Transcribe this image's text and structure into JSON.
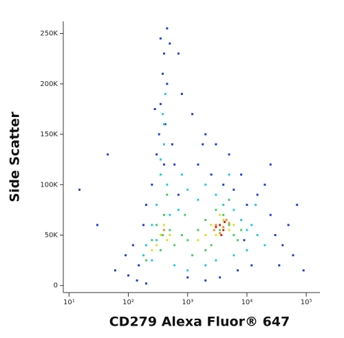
{
  "chart_data": {
    "type": "scatter",
    "xlabel": "CD279 Alexa Fluor® 647",
    "ylabel": "Side Scatter",
    "xscale": "log",
    "xlim": [
      8,
      170000
    ],
    "xticks": [
      {
        "value": 10,
        "label": "10¹"
      },
      {
        "value": 100,
        "label": "10²"
      },
      {
        "value": 1000,
        "label": "10³"
      },
      {
        "value": 10000,
        "label": "10⁴"
      },
      {
        "value": 100000,
        "label": "10⁵"
      }
    ],
    "ylim": [
      -7000,
      262000
    ],
    "yticks": [
      0,
      {
        "value": 50000,
        "label": "50K"
      },
      {
        "value": 100000,
        "label": "100K"
      },
      {
        "value": 150000,
        "label": "150K"
      },
      {
        "value": 200000,
        "label": "200K"
      },
      {
        "value": 250000,
        "label": "250K"
      }
    ],
    "series": [
      {
        "color": "#1f3bd8",
        "x": [
          150,
          200,
          300,
          350,
          400,
          450,
          380,
          420,
          500,
          330,
          600,
          800,
          1200,
          2000,
          3000,
          5000,
          8000,
          15000,
          25000,
          40000,
          60000,
          100,
          120,
          180,
          250,
          700,
          1500,
          2500,
          4000,
          6000,
          10000,
          20000,
          30000,
          50000,
          15,
          30,
          60,
          90,
          2000,
          3500,
          7000,
          12000,
          1000,
          1800,
          9000,
          35000,
          350,
          450,
          400,
          280,
          550,
          700,
          45,
          25000,
          70000,
          140,
          200,
          90000
        ],
        "y": [
          20000,
          80000,
          130000,
          180000,
          230000,
          255000,
          210000,
          160000,
          240000,
          150000,
          120000,
          190000,
          170000,
          150000,
          140000,
          130000,
          110000,
          90000,
          70000,
          40000,
          30000,
          10000,
          40000,
          60000,
          100000,
          90000,
          120000,
          110000,
          100000,
          95000,
          80000,
          100000,
          50000,
          60000,
          95000,
          60000,
          15000,
          30000,
          5000,
          8000,
          15000,
          20000,
          8000,
          140000,
          45000,
          20000,
          245000,
          200000,
          120000,
          175000,
          140000,
          230000,
          130000,
          120000,
          80000,
          5000,
          2000,
          15000
        ]
      },
      {
        "color": "#20c8f0",
        "x": [
          200,
          250,
          300,
          350,
          400,
          380,
          420,
          450,
          500,
          700,
          1000,
          1500,
          2000,
          3000,
          4000,
          6000,
          8000,
          10000,
          15000,
          20000,
          250,
          180,
          600,
          1000,
          2000,
          3000,
          6000,
          10000,
          12000,
          5000,
          400,
          350,
          800,
          300,
          14000
        ],
        "y": [
          40000,
          60000,
          80000,
          110000,
          140000,
          170000,
          190000,
          100000,
          70000,
          75000,
          95000,
          85000,
          100000,
          90000,
          80000,
          75000,
          65000,
          55000,
          50000,
          40000,
          25000,
          30000,
          20000,
          15000,
          20000,
          25000,
          30000,
          35000,
          60000,
          110000,
          160000,
          125000,
          110000,
          45000,
          80000
        ]
      },
      {
        "color": "#40d060",
        "x": [
          300,
          400,
          500,
          250,
          350,
          600,
          800,
          1000,
          1500,
          2000,
          3000,
          4000,
          5000,
          6000,
          7000,
          2500,
          1200,
          900,
          450,
          380,
          3500,
          5000,
          8000,
          2000,
          200
        ],
        "y": [
          60000,
          70000,
          55000,
          45000,
          35000,
          40000,
          50000,
          45000,
          55000,
          65000,
          75000,
          70000,
          60000,
          50000,
          45000,
          40000,
          30000,
          70000,
          90000,
          50000,
          55000,
          85000,
          55000,
          35000,
          25000
        ]
      },
      {
        "color": "#e0e020",
        "x": [
          400,
          500,
          350,
          300,
          2500,
          3000,
          4000,
          5000,
          3500,
          2000,
          1500,
          6000,
          450,
          250
        ],
        "y": [
          60000,
          50000,
          50000,
          40000,
          60000,
          50000,
          65000,
          55000,
          70000,
          50000,
          45000,
          60000,
          45000,
          35000
        ]
      },
      {
        "color": "#f09020",
        "x": [
          3000,
          4000,
          3500,
          4500,
          2800,
          400,
          5000
        ],
        "y": [
          60000,
          58000,
          52000,
          65000,
          55000,
          55000,
          62000
        ]
      },
      {
        "color": "#e02010",
        "x": [
          3500,
          4000,
          3000,
          4200,
          3700
        ],
        "y": [
          60000,
          55000,
          58000,
          63000,
          50000
        ]
      }
    ]
  }
}
